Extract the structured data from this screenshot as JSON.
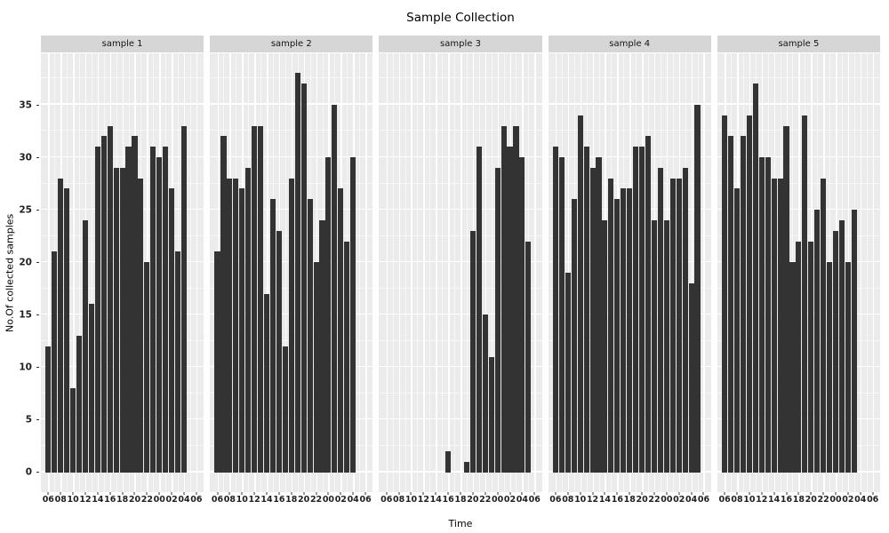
{
  "title": "Sample Collection",
  "axes": {
    "y_label": "No.Of collected samples",
    "x_label": "Time"
  },
  "colors": {
    "bar": "#333333",
    "panel_background": "#ebebeb",
    "strip_background": "#d6d6d6",
    "grid_line": "#ffffff",
    "tick_mark": "#333333",
    "axis_text": "#1f1f1f",
    "title_text": "#000000"
  },
  "chart_data": {
    "type": "bar",
    "title": "Sample Collection",
    "xlabel": "Time",
    "ylabel": "No.Of collected samples",
    "legend": "none",
    "grid": "on",
    "y_major_ticks": [
      0,
      5,
      10,
      15,
      20,
      25,
      30,
      35
    ],
    "y_minor_ticks": [
      2.5,
      7.5,
      12.5,
      17.5,
      22.5,
      27.5,
      32.5,
      37.5
    ],
    "y_domain": [
      -1.9,
      39.9
    ],
    "x_tick_hours": [
      6,
      8,
      10,
      12,
      14,
      16,
      18,
      20,
      22,
      24,
      26,
      28,
      30
    ],
    "x_tick_labels": [
      "06",
      "08",
      "10",
      "12",
      "14",
      "16",
      "18",
      "20",
      "22",
      "00",
      "02",
      "04",
      "06"
    ],
    "x_minor_hours": [
      7,
      9,
      11,
      13,
      15,
      17,
      19,
      21,
      23,
      25,
      27,
      29
    ],
    "x_domain": [
      4.8,
      31.2
    ],
    "bar_width_hours": 0.88,
    "facets": [
      {
        "label": "sample 1",
        "bars": [
          [
            6,
            12
          ],
          [
            7,
            21
          ],
          [
            8,
            28
          ],
          [
            9,
            27
          ],
          [
            10,
            8
          ],
          [
            11,
            13
          ],
          [
            12,
            24
          ],
          [
            13,
            16
          ],
          [
            14,
            31
          ],
          [
            15,
            32
          ],
          [
            16,
            33
          ],
          [
            17,
            29
          ],
          [
            18,
            29
          ],
          [
            19,
            31
          ],
          [
            20,
            32
          ],
          [
            21,
            28
          ],
          [
            22,
            20
          ],
          [
            23,
            31
          ],
          [
            24,
            30
          ],
          [
            25,
            31
          ],
          [
            26,
            27
          ],
          [
            27,
            21
          ],
          [
            28,
            33
          ]
        ]
      },
      {
        "label": "sample 2",
        "bars": [
          [
            6,
            21
          ],
          [
            7,
            32
          ],
          [
            8,
            28
          ],
          [
            9,
            28
          ],
          [
            10,
            27
          ],
          [
            11,
            29
          ],
          [
            12,
            33
          ],
          [
            13,
            33
          ],
          [
            14,
            17
          ],
          [
            15,
            26
          ],
          [
            16,
            23
          ],
          [
            17,
            12
          ],
          [
            18,
            28
          ],
          [
            19,
            38
          ],
          [
            20,
            37
          ],
          [
            21,
            26
          ],
          [
            22,
            20
          ],
          [
            23,
            24
          ],
          [
            24,
            30
          ],
          [
            25,
            35
          ],
          [
            26,
            27
          ],
          [
            27,
            22
          ],
          [
            28,
            30
          ]
        ]
      },
      {
        "label": "sample 3",
        "bars": [
          [
            16,
            2
          ],
          [
            19,
            1
          ],
          [
            20,
            23
          ],
          [
            21,
            31
          ],
          [
            22,
            15
          ],
          [
            23,
            11
          ],
          [
            24,
            29
          ],
          [
            25,
            33
          ],
          [
            26,
            31
          ],
          [
            27,
            33
          ],
          [
            28,
            30
          ],
          [
            29,
            22
          ]
        ]
      },
      {
        "label": "sample 4",
        "bars": [
          [
            6,
            31
          ],
          [
            7,
            30
          ],
          [
            8,
            19
          ],
          [
            9,
            26
          ],
          [
            10,
            34
          ],
          [
            11,
            31
          ],
          [
            12,
            29
          ],
          [
            13,
            30
          ],
          [
            14,
            24
          ],
          [
            15,
            28
          ],
          [
            16,
            26
          ],
          [
            17,
            27
          ],
          [
            18,
            27
          ],
          [
            19,
            31
          ],
          [
            20,
            31
          ],
          [
            21,
            32
          ],
          [
            22,
            24
          ],
          [
            23,
            29
          ],
          [
            24,
            24
          ],
          [
            25,
            28
          ],
          [
            26,
            28
          ],
          [
            27,
            29
          ],
          [
            28,
            18
          ],
          [
            29,
            35
          ]
        ]
      },
      {
        "label": "sample 5",
        "bars": [
          [
            6,
            34
          ],
          [
            7,
            32
          ],
          [
            8,
            27
          ],
          [
            9,
            32
          ],
          [
            10,
            34
          ],
          [
            11,
            37
          ],
          [
            12,
            30
          ],
          [
            13,
            30
          ],
          [
            14,
            28
          ],
          [
            15,
            28
          ],
          [
            16,
            33
          ],
          [
            17,
            20
          ],
          [
            18,
            22
          ],
          [
            19,
            34
          ],
          [
            20,
            22
          ],
          [
            21,
            25
          ],
          [
            22,
            28
          ],
          [
            23,
            20
          ],
          [
            24,
            23
          ],
          [
            25,
            24
          ],
          [
            26,
            20
          ],
          [
            27,
            25
          ]
        ]
      }
    ]
  }
}
